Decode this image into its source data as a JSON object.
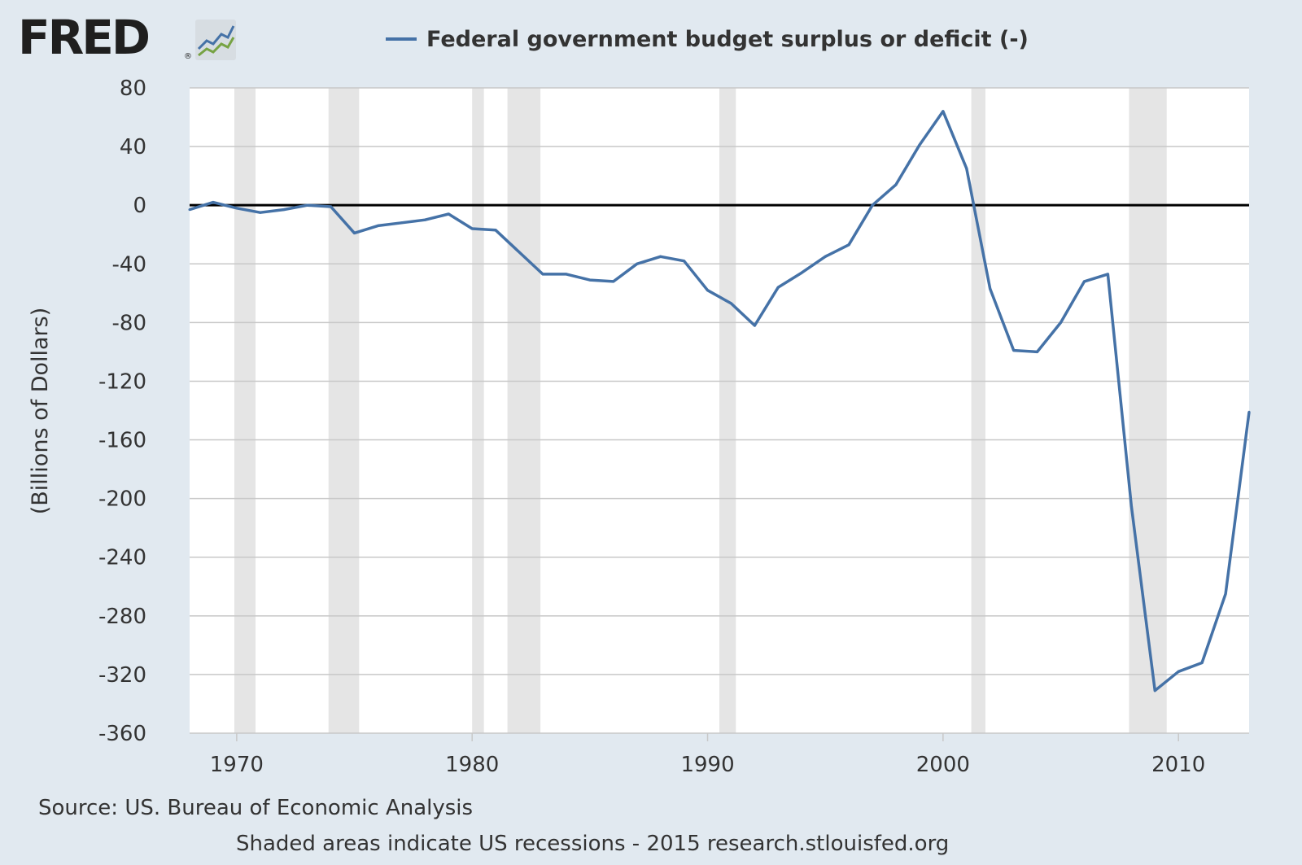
{
  "logo": {
    "text": "FRED",
    "registered": "®",
    "icon": "fred-graph-icon"
  },
  "legend": {
    "label": "Federal government budget surplus or deficit (-)",
    "color": "#4572a7"
  },
  "colors": {
    "background": "#e1e9f0",
    "plot_bg": "#ffffff",
    "grid": "#c8c8c8",
    "recession": "#e5e5e5",
    "series": "#4572a7",
    "zero_line": "#000000"
  },
  "source": "Source: US. Bureau of Economic Analysis",
  "note": "Shaded areas indicate US recessions - 2015 research.stlouisfed.org",
  "chart_data": {
    "type": "line",
    "title": "Federal government budget surplus or deficit (-)",
    "xlabel": "",
    "ylabel": "(Billions of Dollars)",
    "xlim": [
      1968,
      2013
    ],
    "ylim": [
      -360,
      80
    ],
    "yticks": [
      80,
      40,
      0,
      -40,
      -80,
      -120,
      -160,
      -200,
      -240,
      -280,
      -320,
      -360
    ],
    "xticks": [
      1970,
      1980,
      1990,
      2000,
      2010
    ],
    "zero_line": true,
    "grid": "horizontal",
    "recessions": [
      [
        1969.9,
        1970.8
      ],
      [
        1973.9,
        1975.2
      ],
      [
        1980.0,
        1980.5
      ],
      [
        1981.5,
        1982.9
      ],
      [
        1990.5,
        1991.2
      ],
      [
        2001.2,
        2001.8
      ],
      [
        2007.9,
        2009.5
      ]
    ],
    "series": [
      {
        "name": "Federal government budget surplus or deficit (-)",
        "x": [
          1968,
          1969,
          1970,
          1971,
          1972,
          1973,
          1974,
          1975,
          1976,
          1977,
          1978,
          1979,
          1980,
          1981,
          1982,
          1983,
          1984,
          1985,
          1986,
          1987,
          1988,
          1989,
          1990,
          1991,
          1992,
          1993,
          1994,
          1995,
          1996,
          1997,
          1998,
          1999,
          2000,
          2001,
          2002,
          2003,
          2004,
          2005,
          2006,
          2007,
          2008,
          2009,
          2010,
          2011,
          2012,
          2013
        ],
        "values": [
          -3,
          2,
          -2,
          -5,
          -3,
          0,
          -1,
          -19,
          -14,
          -12,
          -10,
          -6,
          -16,
          -17,
          -32,
          -47,
          -47,
          -51,
          -52,
          -40,
          -35,
          -38,
          -58,
          -67,
          -82,
          -56,
          -46,
          -35,
          -27,
          0,
          14,
          41,
          64,
          25,
          -57,
          -99,
          -100,
          -80,
          -52,
          -47,
          -205,
          -331,
          -318,
          -312,
          -265,
          -141
        ]
      }
    ]
  }
}
